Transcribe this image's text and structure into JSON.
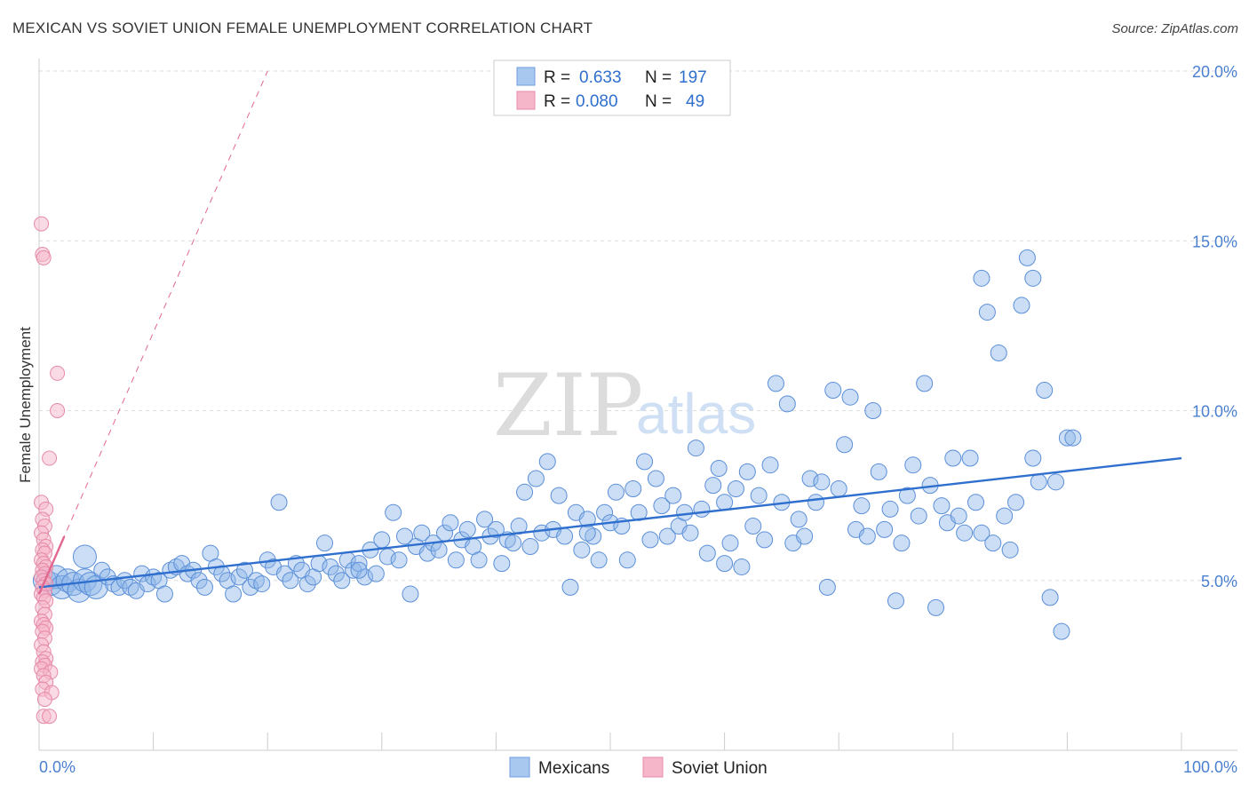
{
  "header": {
    "title": "MEXICAN VS SOVIET UNION FEMALE UNEMPLOYMENT CORRELATION CHART",
    "source": "Source: ZipAtlas.com"
  },
  "watermark": {
    "zip": "ZIP",
    "atlas": "atlas"
  },
  "legend": {
    "rows": [
      {
        "r_label": "R =",
        "r_value": "0.633",
        "n_label": "N =",
        "n_value": "197",
        "color": "#a9c8f0"
      },
      {
        "r_label": "R =",
        "r_value": "0.080",
        "n_label": "N =",
        "n_value": "49",
        "color": "#f5b6c9"
      }
    ]
  },
  "bottom_legend": [
    {
      "label": "Mexicans",
      "color": "#a9c8f0"
    },
    {
      "label": "Soviet Union",
      "color": "#f5b6c9"
    }
  ],
  "chart_data": {
    "type": "scatter",
    "ylabel": "Female Unemployment",
    "xlim": [
      0,
      100
    ],
    "ylim": [
      0,
      20
    ],
    "x_tick_labels": [
      {
        "value": 0,
        "label": "0.0%"
      },
      {
        "value": 100,
        "label": "100.0%"
      }
    ],
    "y_ticks": [
      {
        "value": 5,
        "label": "5.0%"
      },
      {
        "value": 10,
        "label": "10.0%"
      },
      {
        "value": 15,
        "label": "15.0%"
      },
      {
        "value": 20,
        "label": "20.0%"
      }
    ],
    "grid": true,
    "series": [
      {
        "name": "Mexicans",
        "color": "#8fb5e8",
        "stroke": "#5b8fd8",
        "trend": {
          "x": [
            0,
            100
          ],
          "y": [
            4.8,
            8.6
          ],
          "color": "#2f6fce",
          "dashed": false
        },
        "points": [
          [
            0.5,
            5.0
          ],
          [
            1.0,
            4.9
          ],
          [
            1.5,
            5.1
          ],
          [
            2.0,
            4.8
          ],
          [
            2.5,
            5.0
          ],
          [
            3.0,
            4.9
          ],
          [
            3.5,
            4.7
          ],
          [
            4.0,
            5.0
          ],
          [
            4.5,
            4.9
          ],
          [
            5.0,
            4.8
          ],
          [
            4.0,
            5.7
          ],
          [
            5.5,
            5.3
          ],
          [
            6.0,
            5.1
          ],
          [
            6.5,
            4.9
          ],
          [
            7.0,
            4.8
          ],
          [
            7.5,
            5.0
          ],
          [
            8.0,
            4.8
          ],
          [
            8.5,
            4.7
          ],
          [
            9.0,
            5.2
          ],
          [
            9.5,
            4.9
          ],
          [
            10.0,
            5.1
          ],
          [
            10.5,
            5.0
          ],
          [
            11.0,
            4.6
          ],
          [
            11.5,
            5.3
          ],
          [
            12.0,
            5.4
          ],
          [
            12.5,
            5.5
          ],
          [
            13.0,
            5.2
          ],
          [
            13.5,
            5.3
          ],
          [
            14.0,
            5.0
          ],
          [
            14.5,
            4.8
          ],
          [
            15.0,
            5.8
          ],
          [
            15.5,
            5.4
          ],
          [
            16.0,
            5.2
          ],
          [
            16.5,
            5.0
          ],
          [
            17.0,
            4.6
          ],
          [
            17.5,
            5.1
          ],
          [
            18.0,
            5.3
          ],
          [
            18.5,
            4.8
          ],
          [
            19.0,
            5.0
          ],
          [
            19.5,
            4.9
          ],
          [
            20.0,
            5.6
          ],
          [
            20.5,
            5.4
          ],
          [
            21.0,
            7.3
          ],
          [
            21.5,
            5.2
          ],
          [
            22.0,
            5.0
          ],
          [
            22.5,
            5.5
          ],
          [
            23.0,
            5.3
          ],
          [
            23.5,
            4.9
          ],
          [
            24.0,
            5.1
          ],
          [
            24.5,
            5.5
          ],
          [
            25.0,
            6.1
          ],
          [
            25.5,
            5.4
          ],
          [
            26.0,
            5.2
          ],
          [
            26.5,
            5.0
          ],
          [
            27.0,
            5.6
          ],
          [
            27.5,
            5.3
          ],
          [
            28.0,
            5.5
          ],
          [
            28.5,
            5.1
          ],
          [
            29.0,
            5.9
          ],
          [
            29.5,
            5.2
          ],
          [
            30.0,
            6.2
          ],
          [
            30.5,
            5.7
          ],
          [
            31.0,
            7.0
          ],
          [
            31.5,
            5.6
          ],
          [
            32.0,
            6.3
          ],
          [
            32.5,
            4.6
          ],
          [
            33.0,
            6.0
          ],
          [
            33.5,
            6.4
          ],
          [
            34.0,
            5.8
          ],
          [
            34.5,
            6.1
          ],
          [
            35.0,
            5.9
          ],
          [
            35.5,
            6.4
          ],
          [
            36.0,
            6.7
          ],
          [
            36.5,
            5.6
          ],
          [
            37.0,
            6.2
          ],
          [
            37.5,
            6.5
          ],
          [
            38.0,
            6.0
          ],
          [
            38.5,
            5.6
          ],
          [
            39.0,
            6.8
          ],
          [
            39.5,
            6.3
          ],
          [
            40.0,
            6.5
          ],
          [
            40.5,
            5.5
          ],
          [
            41.0,
            6.2
          ],
          [
            41.5,
            6.1
          ],
          [
            42.0,
            6.6
          ],
          [
            42.5,
            7.6
          ],
          [
            43.0,
            6.0
          ],
          [
            43.5,
            8.0
          ],
          [
            44.0,
            6.4
          ],
          [
            44.5,
            8.5
          ],
          [
            45.0,
            6.5
          ],
          [
            45.5,
            7.5
          ],
          [
            46.0,
            6.3
          ],
          [
            46.5,
            4.8
          ],
          [
            47.0,
            7.0
          ],
          [
            47.5,
            5.9
          ],
          [
            48.0,
            6.8
          ],
          [
            48.5,
            6.3
          ],
          [
            49.0,
            5.6
          ],
          [
            49.5,
            7.0
          ],
          [
            50.0,
            6.7
          ],
          [
            50.5,
            7.6
          ],
          [
            51.0,
            6.6
          ],
          [
            51.5,
            5.6
          ],
          [
            52.0,
            7.7
          ],
          [
            52.5,
            7.0
          ],
          [
            53.0,
            8.5
          ],
          [
            53.5,
            6.2
          ],
          [
            54.0,
            8.0
          ],
          [
            54.5,
            7.2
          ],
          [
            55.0,
            6.3
          ],
          [
            55.5,
            7.5
          ],
          [
            56.0,
            6.6
          ],
          [
            56.5,
            7.0
          ],
          [
            57.0,
            6.4
          ],
          [
            57.5,
            8.9
          ],
          [
            58.0,
            7.1
          ],
          [
            58.5,
            5.8
          ],
          [
            59.0,
            7.8
          ],
          [
            59.5,
            8.3
          ],
          [
            60.0,
            7.3
          ],
          [
            60.5,
            6.1
          ],
          [
            61.0,
            7.7
          ],
          [
            61.5,
            5.4
          ],
          [
            62.0,
            8.2
          ],
          [
            62.5,
            6.6
          ],
          [
            63.0,
            7.5
          ],
          [
            63.5,
            6.2
          ],
          [
            64.0,
            8.4
          ],
          [
            64.5,
            10.8
          ],
          [
            65.0,
            7.3
          ],
          [
            65.5,
            10.2
          ],
          [
            66.0,
            6.1
          ],
          [
            66.5,
            6.8
          ],
          [
            67.0,
            6.3
          ],
          [
            67.5,
            8.0
          ],
          [
            68.0,
            7.3
          ],
          [
            68.5,
            7.9
          ],
          [
            69.0,
            4.8
          ],
          [
            69.5,
            10.6
          ],
          [
            70.0,
            7.7
          ],
          [
            70.5,
            9.0
          ],
          [
            71.0,
            10.4
          ],
          [
            71.5,
            6.5
          ],
          [
            72.0,
            7.2
          ],
          [
            72.5,
            6.3
          ],
          [
            73.0,
            10.0
          ],
          [
            73.5,
            8.2
          ],
          [
            74.0,
            6.5
          ],
          [
            74.5,
            7.1
          ],
          [
            75.0,
            4.4
          ],
          [
            75.5,
            6.1
          ],
          [
            76.0,
            7.5
          ],
          [
            76.5,
            8.4
          ],
          [
            77.0,
            6.9
          ],
          [
            77.5,
            10.8
          ],
          [
            78.0,
            7.8
          ],
          [
            78.5,
            4.2
          ],
          [
            79.0,
            7.2
          ],
          [
            79.5,
            6.7
          ],
          [
            80.0,
            8.6
          ],
          [
            80.5,
            6.9
          ],
          [
            81.0,
            6.4
          ],
          [
            81.5,
            8.6
          ],
          [
            82.0,
            7.3
          ],
          [
            82.5,
            6.4
          ],
          [
            83.0,
            12.9
          ],
          [
            83.5,
            6.1
          ],
          [
            84.0,
            11.7
          ],
          [
            84.5,
            6.9
          ],
          [
            85.0,
            5.9
          ],
          [
            85.5,
            7.3
          ],
          [
            86.0,
            13.1
          ],
          [
            86.5,
            14.5
          ],
          [
            87.0,
            8.6
          ],
          [
            87.5,
            7.9
          ],
          [
            88.0,
            10.6
          ],
          [
            88.5,
            4.5
          ],
          [
            89.0,
            7.9
          ],
          [
            89.5,
            3.5
          ],
          [
            90.0,
            9.2
          ],
          [
            90.5,
            9.2
          ],
          [
            87.0,
            13.9
          ],
          [
            82.5,
            13.9
          ],
          [
            60.0,
            5.5
          ],
          [
            48.0,
            6.4
          ],
          [
            28.0,
            5.3
          ]
        ]
      },
      {
        "name": "Soviet Union",
        "color": "#f5b6c9",
        "stroke": "#e58aa8",
        "trend": {
          "x": [
            0,
            20
          ],
          "y": [
            4.6,
            20.0
          ],
          "color": "#e2678f",
          "dashed": true
        },
        "points": [
          [
            0.2,
            15.5
          ],
          [
            0.3,
            14.6
          ],
          [
            0.4,
            14.5
          ],
          [
            1.6,
            11.1
          ],
          [
            1.6,
            10.0
          ],
          [
            0.9,
            8.6
          ],
          [
            0.2,
            7.3
          ],
          [
            0.6,
            7.1
          ],
          [
            0.3,
            6.8
          ],
          [
            0.5,
            6.6
          ],
          [
            0.2,
            6.4
          ],
          [
            0.4,
            6.2
          ],
          [
            0.6,
            6.0
          ],
          [
            0.3,
            5.9
          ],
          [
            0.5,
            5.8
          ],
          [
            0.2,
            5.6
          ],
          [
            0.4,
            5.5
          ],
          [
            0.6,
            5.4
          ],
          [
            0.3,
            5.3
          ],
          [
            0.5,
            5.2
          ],
          [
            0.2,
            5.1
          ],
          [
            0.4,
            5.0
          ],
          [
            0.6,
            4.9
          ],
          [
            0.3,
            4.8
          ],
          [
            0.5,
            4.7
          ],
          [
            0.2,
            4.6
          ],
          [
            0.4,
            4.5
          ],
          [
            0.6,
            4.4
          ],
          [
            0.3,
            4.2
          ],
          [
            0.5,
            4.0
          ],
          [
            0.2,
            3.8
          ],
          [
            0.4,
            3.7
          ],
          [
            0.6,
            3.6
          ],
          [
            0.3,
            3.5
          ],
          [
            0.5,
            3.3
          ],
          [
            0.2,
            3.1
          ],
          [
            0.4,
            2.9
          ],
          [
            0.6,
            2.7
          ],
          [
            0.3,
            2.6
          ],
          [
            0.5,
            2.5
          ],
          [
            0.2,
            2.4
          ],
          [
            1.0,
            2.3
          ],
          [
            0.4,
            2.2
          ],
          [
            0.6,
            2.0
          ],
          [
            0.3,
            1.8
          ],
          [
            1.1,
            1.7
          ],
          [
            0.5,
            1.5
          ],
          [
            0.4,
            1.0
          ],
          [
            0.9,
            1.0
          ]
        ]
      }
    ]
  }
}
